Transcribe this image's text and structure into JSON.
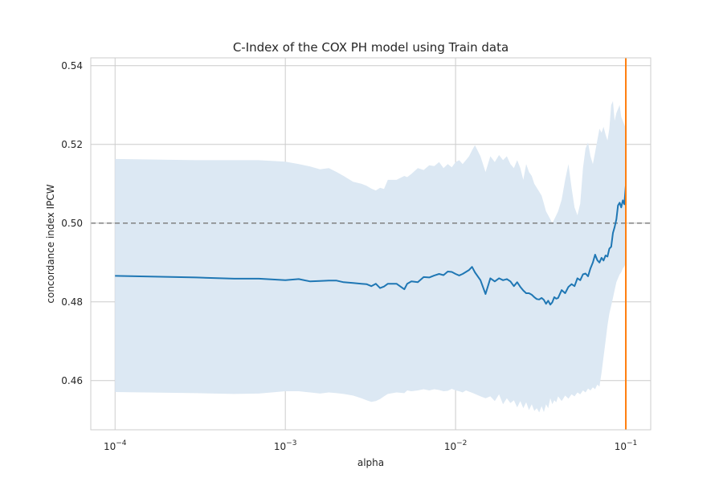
{
  "chart_data": {
    "type": "line",
    "title": "C-Index of the COX PH model using Train data",
    "xlabel": "alpha",
    "ylabel": "concordance index IPCW",
    "x_scale": "log",
    "xlim": [
      7.2e-05,
      0.14
    ],
    "ylim": [
      0.4475,
      0.542
    ],
    "grid": true,
    "x_ticks": [
      {
        "value": 0.0001,
        "base": "10",
        "exp": "−4"
      },
      {
        "value": 0.001,
        "base": "10",
        "exp": "−3"
      },
      {
        "value": 0.01,
        "base": "10",
        "exp": "−2"
      },
      {
        "value": 0.1,
        "base": "10",
        "exp": "−1"
      }
    ],
    "y_ticks": [
      {
        "value": 0.46,
        "label": "0.46"
      },
      {
        "value": 0.48,
        "label": "0.48"
      },
      {
        "value": 0.5,
        "label": "0.50"
      },
      {
        "value": 0.52,
        "label": "0.52"
      },
      {
        "value": 0.54,
        "label": "0.54"
      }
    ],
    "reference_line": {
      "y": 0.5,
      "style": "dashed",
      "color": "#808080"
    },
    "vertical_line": {
      "x": 0.1,
      "color": "#ff7f0e"
    },
    "colors": {
      "line": "#1f77b4",
      "band": "#dce8f3",
      "grid": "#cccccc",
      "spine": "#cccccc"
    },
    "series": [
      {
        "x": [
          0.0001,
          0.0003,
          0.0005,
          0.0007,
          0.001,
          0.0012,
          0.0014,
          0.0016,
          0.0018,
          0.002,
          0.0022,
          0.0025,
          0.0028,
          0.003,
          0.0032,
          0.0034,
          0.0036,
          0.0038,
          0.004,
          0.0045,
          0.005,
          0.0052,
          0.0055,
          0.006,
          0.0065,
          0.007,
          0.0075,
          0.008,
          0.0085,
          0.009,
          0.0095,
          0.01,
          0.0105,
          0.011,
          0.0115,
          0.012,
          0.0125,
          0.013,
          0.014,
          0.015,
          0.016,
          0.017,
          0.018,
          0.019,
          0.02,
          0.021,
          0.022,
          0.023,
          0.024,
          0.025,
          0.026,
          0.027,
          0.028,
          0.029,
          0.03,
          0.031,
          0.032,
          0.033,
          0.034,
          0.035,
          0.036,
          0.037,
          0.038,
          0.039,
          0.04,
          0.042,
          0.044,
          0.046,
          0.048,
          0.05,
          0.052,
          0.054,
          0.056,
          0.058,
          0.06,
          0.062,
          0.064,
          0.066,
          0.068,
          0.07,
          0.072,
          0.074,
          0.076,
          0.078,
          0.08,
          0.082,
          0.084,
          0.086,
          0.088,
          0.09,
          0.092,
          0.094,
          0.096,
          0.098,
          0.1
        ],
        "y": [
          0.4866,
          0.4862,
          0.4859,
          0.4859,
          0.4855,
          0.4858,
          0.4852,
          0.4853,
          0.4854,
          0.4854,
          0.485,
          0.4848,
          0.4846,
          0.4845,
          0.484,
          0.4846,
          0.4835,
          0.4839,
          0.4846,
          0.4846,
          0.4832,
          0.4846,
          0.4852,
          0.485,
          0.4863,
          0.4862,
          0.4867,
          0.4871,
          0.4868,
          0.4877,
          0.4876,
          0.4871,
          0.4867,
          0.4871,
          0.4876,
          0.4881,
          0.4889,
          0.4875,
          0.4855,
          0.482,
          0.486,
          0.4852,
          0.486,
          0.4855,
          0.4858,
          0.4852,
          0.484,
          0.485,
          0.4838,
          0.4829,
          0.4822,
          0.4822,
          0.4818,
          0.4812,
          0.4807,
          0.4806,
          0.481,
          0.4805,
          0.4795,
          0.4803,
          0.4793,
          0.4799,
          0.4812,
          0.4808,
          0.481,
          0.483,
          0.4822,
          0.4838,
          0.4845,
          0.484,
          0.486,
          0.4855,
          0.487,
          0.4872,
          0.4865,
          0.4885,
          0.49,
          0.492,
          0.4906,
          0.49,
          0.4912,
          0.4905,
          0.4918,
          0.4915,
          0.4935,
          0.494,
          0.4975,
          0.499,
          0.501,
          0.5045,
          0.5052,
          0.504,
          0.5058,
          0.5048,
          0.5095
        ],
        "lower": [
          0.4571,
          0.4568,
          0.4566,
          0.4567,
          0.4573,
          0.4573,
          0.457,
          0.4567,
          0.457,
          0.4568,
          0.4566,
          0.4562,
          0.4555,
          0.455,
          0.4546,
          0.4548,
          0.4553,
          0.456,
          0.4566,
          0.457,
          0.4568,
          0.4575,
          0.4573,
          0.4575,
          0.4578,
          0.4575,
          0.4578,
          0.4576,
          0.4573,
          0.4574,
          0.4579,
          0.4575,
          0.4573,
          0.457,
          0.4575,
          0.4572,
          0.4569,
          0.4566,
          0.456,
          0.4555,
          0.456,
          0.4548,
          0.4565,
          0.454,
          0.4555,
          0.4543,
          0.455,
          0.4532,
          0.4548,
          0.453,
          0.4545,
          0.4525,
          0.454,
          0.4523,
          0.453,
          0.4519,
          0.4535,
          0.452,
          0.454,
          0.453,
          0.4555,
          0.454,
          0.455,
          0.4545,
          0.456,
          0.4548,
          0.4562,
          0.4554,
          0.4565,
          0.456,
          0.457,
          0.4565,
          0.4575,
          0.457,
          0.458,
          0.4575,
          0.4583,
          0.4578,
          0.459,
          0.4585,
          0.462,
          0.466,
          0.47,
          0.474,
          0.477,
          0.479,
          0.481,
          0.483,
          0.485,
          0.486,
          0.487,
          0.4875,
          0.4885,
          0.489,
          0.49
        ],
        "upper": [
          0.5163,
          0.516,
          0.516,
          0.516,
          0.5156,
          0.515,
          0.5144,
          0.5137,
          0.514,
          0.513,
          0.512,
          0.5105,
          0.51,
          0.5095,
          0.5088,
          0.5083,
          0.509,
          0.5087,
          0.511,
          0.511,
          0.512,
          0.5117,
          0.5125,
          0.514,
          0.5135,
          0.5147,
          0.5145,
          0.5155,
          0.514,
          0.515,
          0.5142,
          0.5155,
          0.516,
          0.515,
          0.516,
          0.517,
          0.5185,
          0.5198,
          0.517,
          0.513,
          0.517,
          0.5155,
          0.5173,
          0.516,
          0.517,
          0.515,
          0.514,
          0.516,
          0.514,
          0.511,
          0.515,
          0.513,
          0.512,
          0.51,
          0.509,
          0.508,
          0.507,
          0.505,
          0.503,
          0.502,
          0.501,
          0.5,
          0.501,
          0.502,
          0.503,
          0.506,
          0.511,
          0.515,
          0.509,
          0.504,
          0.502,
          0.505,
          0.514,
          0.519,
          0.5205,
          0.517,
          0.515,
          0.518,
          0.521,
          0.524,
          0.523,
          0.5245,
          0.5225,
          0.521,
          0.524,
          0.53,
          0.531,
          0.526,
          0.528,
          0.529,
          0.53,
          0.527,
          0.526,
          0.525,
          0.524
        ]
      }
    ]
  }
}
